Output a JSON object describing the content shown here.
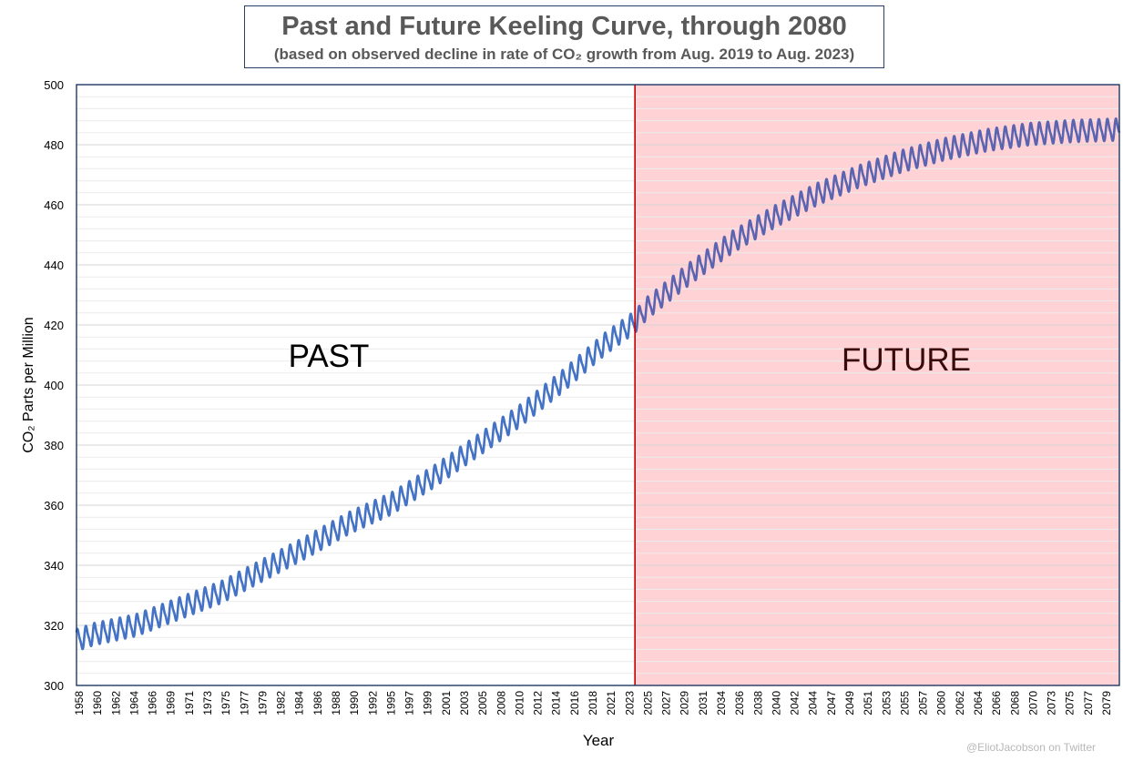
{
  "title": "Past and Future Keeling Curve, through 2080",
  "subtitle": "(based on observed decline in rate of CO₂ growth from Aug. 2019 to Aug. 2023)",
  "watermark": "@EliotJacobson on Twitter",
  "colors": {
    "past_line": "#4472c4",
    "future_line": "#5b64b0",
    "future_fill": "#ffd2d6",
    "divider": "#c00000",
    "frame": "#1f3864",
    "grid": "#d9d9d9"
  },
  "chart_data": {
    "type": "line",
    "title": "Past and Future Keeling Curve, through 2080",
    "subtitle": "(based on observed decline in rate of CO₂ growth from Aug. 2019 to Aug. 2023)",
    "xlabel": "Year",
    "ylabel": "CO₂ Parts per Million",
    "ylim": [
      300,
      500
    ],
    "yticks": [
      300,
      320,
      340,
      360,
      380,
      400,
      420,
      440,
      460,
      480,
      500
    ],
    "xlim": [
      1958,
      2080.5
    ],
    "xtick_labels": [
      "1958",
      "1960",
      "1962",
      "1964",
      "1966",
      "1969",
      "1971",
      "1973",
      "1975",
      "1977",
      "1979",
      "1982",
      "1984",
      "1986",
      "1988",
      "1990",
      "1992",
      "1995",
      "1997",
      "1999",
      "2001",
      "2003",
      "2005",
      "2008",
      "2010",
      "2012",
      "2014",
      "2016",
      "2018",
      "2021",
      "2023",
      "2025",
      "2027",
      "2029",
      "2031",
      "2034",
      "2036",
      "2038",
      "2040",
      "2042",
      "2044",
      "2047",
      "2049",
      "2051",
      "2053",
      "2055",
      "2057",
      "2060",
      "2062",
      "2064",
      "2066",
      "2068",
      "2070",
      "2073",
      "2075",
      "2077",
      "2079"
    ],
    "grid": true,
    "seasonal_amplitude_ppm": 3.3,
    "regions": [
      {
        "label": "PAST",
        "from": 1958,
        "to": 2023.6
      },
      {
        "label": "FUTURE",
        "from": 2023.6,
        "to": 2080.5
      }
    ],
    "series": [
      {
        "x": [
          1958,
          1960,
          1965,
          1970,
          1975,
          1980,
          1985,
          1990,
          1995,
          2000,
          2005,
          2010,
          2015,
          2020,
          2023.6
        ],
        "y": [
          315,
          317,
          320,
          325.5,
          331,
          338.5,
          346,
          354,
          360.5,
          369.5,
          379.5,
          389.5,
          401,
          413.5,
          421
        ]
      },
      {
        "x": [
          2023.6,
          2025,
          2030,
          2035,
          2040,
          2045,
          2050,
          2055,
          2060,
          2065,
          2070,
          2075,
          2080.5
        ],
        "y": [
          421,
          425.5,
          437,
          447.5,
          456,
          463.5,
          469.5,
          474.5,
          478.5,
          481.5,
          483.5,
          484.5,
          485
        ]
      }
    ]
  }
}
